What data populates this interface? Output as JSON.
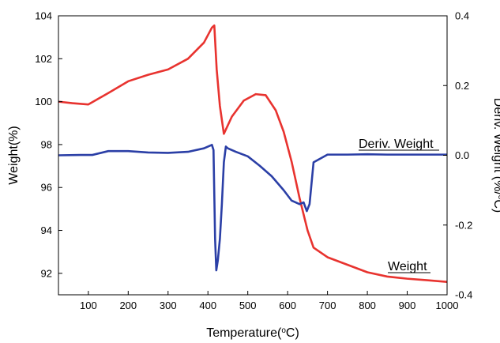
{
  "chart_data": {
    "type": "line",
    "xlabel": "Temperature(°C)",
    "ylabel_left": "Weight(%)",
    "ylabel_right": "Deriv. Weight (%/°C)",
    "xlim": [
      25,
      1000
    ],
    "ylim_left": [
      91,
      104
    ],
    "ylim_right": [
      -0.4,
      0.4
    ],
    "x_ticks": [
      100,
      200,
      300,
      400,
      500,
      600,
      700,
      800,
      900,
      1000
    ],
    "y_ticks_left": [
      92,
      94,
      96,
      98,
      100,
      102,
      104
    ],
    "y_ticks_right": [
      -0.4,
      -0.2,
      0.0,
      0.2,
      0.4
    ],
    "y_tick_labels_right": [
      "-0.4",
      "-0.2",
      "0.0",
      "0.2",
      "0.4"
    ],
    "grid": false,
    "legend": "none",
    "series": [
      {
        "name": "Weight",
        "axis": "left",
        "color": "#e8332f",
        "x": [
          25,
          60,
          100,
          150,
          200,
          250,
          300,
          350,
          390,
          410,
          416,
          422,
          430,
          440,
          460,
          490,
          520,
          545,
          570,
          590,
          610,
          630,
          650,
          665,
          700,
          750,
          800,
          850,
          900,
          950,
          1000
        ],
        "y": [
          100.0,
          99.93,
          99.87,
          100.4,
          100.95,
          101.25,
          101.5,
          102.0,
          102.75,
          103.45,
          103.55,
          101.5,
          99.8,
          98.5,
          99.3,
          100.05,
          100.35,
          100.3,
          99.6,
          98.6,
          97.2,
          95.5,
          94.0,
          93.2,
          92.75,
          92.4,
          92.05,
          91.85,
          91.75,
          91.68,
          91.6
        ]
      },
      {
        "name": "Deriv. Weight",
        "axis": "right",
        "color": "#2b3fa6",
        "x": [
          25,
          80,
          110,
          150,
          200,
          250,
          300,
          350,
          390,
          410,
          414,
          418,
          421,
          425,
          430,
          435,
          440,
          445,
          450,
          470,
          500,
          530,
          560,
          590,
          610,
          630,
          640,
          648,
          655,
          665,
          700,
          750,
          800,
          850,
          900,
          950,
          1000
        ],
        "y": [
          0.0,
          0.001,
          0.001,
          0.012,
          0.012,
          0.008,
          0.007,
          0.01,
          0.02,
          0.03,
          0.015,
          -0.24,
          -0.33,
          -0.3,
          -0.24,
          -0.14,
          -0.02,
          0.025,
          0.02,
          0.01,
          -0.003,
          -0.03,
          -0.06,
          -0.1,
          -0.13,
          -0.14,
          -0.135,
          -0.16,
          -0.14,
          -0.02,
          0.002,
          0.002,
          0.003,
          0.002,
          0.002,
          0.002,
          0.002
        ]
      }
    ],
    "annotations": [
      {
        "text": "Deriv. Weight",
        "series": "Deriv. Weight",
        "underline": true
      },
      {
        "text": "Weight",
        "series": "Weight",
        "underline": true
      }
    ]
  }
}
